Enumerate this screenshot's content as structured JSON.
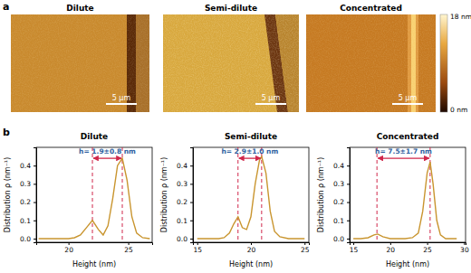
{
  "panel_a": {
    "label": "a",
    "images": [
      {
        "title": "Dilute",
        "scale_bar": "5 µm"
      },
      {
        "title": "Semi-dilute",
        "scale_bar": "5 µm"
      },
      {
        "title": "Concentrated",
        "scale_bar": "5 µm"
      }
    ],
    "colorbar": {
      "top_label": "18 nm",
      "bottom_label": "0 nm"
    }
  },
  "panel_b": {
    "label": "b"
  },
  "chart_data": [
    {
      "type": "line",
      "title": "Dilute",
      "x_label": "Height (nm)",
      "y_label": "Distribution ρ (nm⁻¹)",
      "x": [
        17.5,
        18,
        18.5,
        19,
        19.5,
        20,
        20.5,
        21,
        21.5,
        22,
        22.5,
        22.9,
        23.3,
        23.7,
        24.1,
        24.5,
        24.9,
        25.3,
        25.7,
        26.2,
        26.8
      ],
      "values": [
        0,
        0,
        0,
        0,
        0,
        0,
        0.005,
        0.02,
        0.06,
        0.1,
        0.05,
        0.02,
        0.07,
        0.22,
        0.4,
        0.44,
        0.32,
        0.12,
        0.03,
        0.005,
        0
      ],
      "color": "#c9952f",
      "line_style": "solid",
      "xlim": [
        17.3,
        27
      ],
      "xticks": [
        20,
        25
      ],
      "ylim": [
        -0.02,
        0.5
      ],
      "yticks": [
        {
          "value": 0,
          "label": "0.0"
        },
        {
          "value": 0.1,
          "label": "0.1"
        },
        {
          "value": 0.2,
          "label": "0.2"
        },
        {
          "value": 0.3,
          "label": "0.3"
        },
        {
          "value": 0.4,
          "label": "0.4"
        }
      ],
      "annotation": {
        "text": "h= 1.9±0.8 nm",
        "x": [
          22,
          24.5
        ],
        "y": 0.44
      }
    },
    {
      "type": "line",
      "title": "Semi-dilute",
      "x_label": "Height (nm)",
      "y_label": "Distribution ρ (nm⁻¹)",
      "x": [
        15,
        16,
        17,
        17.5,
        18,
        18.4,
        18.8,
        19.2,
        19.6,
        20,
        20.4,
        20.8,
        21,
        21.4,
        21.8,
        22.2,
        22.7,
        23.5,
        25
      ],
      "values": [
        0,
        0,
        0,
        0.005,
        0.03,
        0.08,
        0.12,
        0.06,
        0.05,
        0.12,
        0.3,
        0.43,
        0.45,
        0.36,
        0.15,
        0.04,
        0.01,
        0,
        0
      ],
      "color": "#c9952f",
      "line_style": "solid",
      "xlim": [
        14.6,
        25.4
      ],
      "xticks": [
        15,
        20,
        25
      ],
      "ylim": [
        -0.02,
        0.5
      ],
      "yticks": [
        {
          "value": 0,
          "label": "0.0"
        },
        {
          "value": 0.1,
          "label": "0.1"
        },
        {
          "value": 0.2,
          "label": "0.2"
        },
        {
          "value": 0.3,
          "label": "0.3"
        },
        {
          "value": 0.4,
          "label": "0.4"
        }
      ],
      "annotation": {
        "text": "h= 2.9±1.0 nm",
        "x": [
          18.8,
          21
        ],
        "y": 0.44
      }
    },
    {
      "type": "line",
      "title": "Concentrated",
      "x_label": "Height (nm)",
      "y_label": "Distribution ρ (nm⁻¹)",
      "x": [
        15,
        16,
        17,
        17.8,
        18.3,
        19,
        20,
        21,
        22,
        23,
        23.8,
        24.4,
        25,
        25.4,
        25.8,
        26.3,
        26.8,
        27.5,
        29
      ],
      "values": [
        0,
        0,
        0.005,
        0.02,
        0.025,
        0.01,
        0,
        0,
        0,
        0.005,
        0.03,
        0.15,
        0.36,
        0.42,
        0.3,
        0.1,
        0.02,
        0,
        0
      ],
      "color": "#c9952f",
      "line_style": "solid",
      "xlim": [
        14.5,
        30.2
      ],
      "xticks": [
        15,
        20,
        25,
        30
      ],
      "ylim": [
        -0.02,
        0.5
      ],
      "yticks": [
        {
          "value": 0,
          "label": "0.0"
        },
        {
          "value": 0.1,
          "label": "0.1"
        },
        {
          "value": 0.2,
          "label": "0.2"
        },
        {
          "value": 0.3,
          "label": "0.3"
        },
        {
          "value": 0.4,
          "label": "0.4"
        }
      ],
      "annotation": {
        "text": "h= 7.5±1.7 nm",
        "x": [
          18.2,
          25.4
        ],
        "y": 0.44
      }
    }
  ]
}
